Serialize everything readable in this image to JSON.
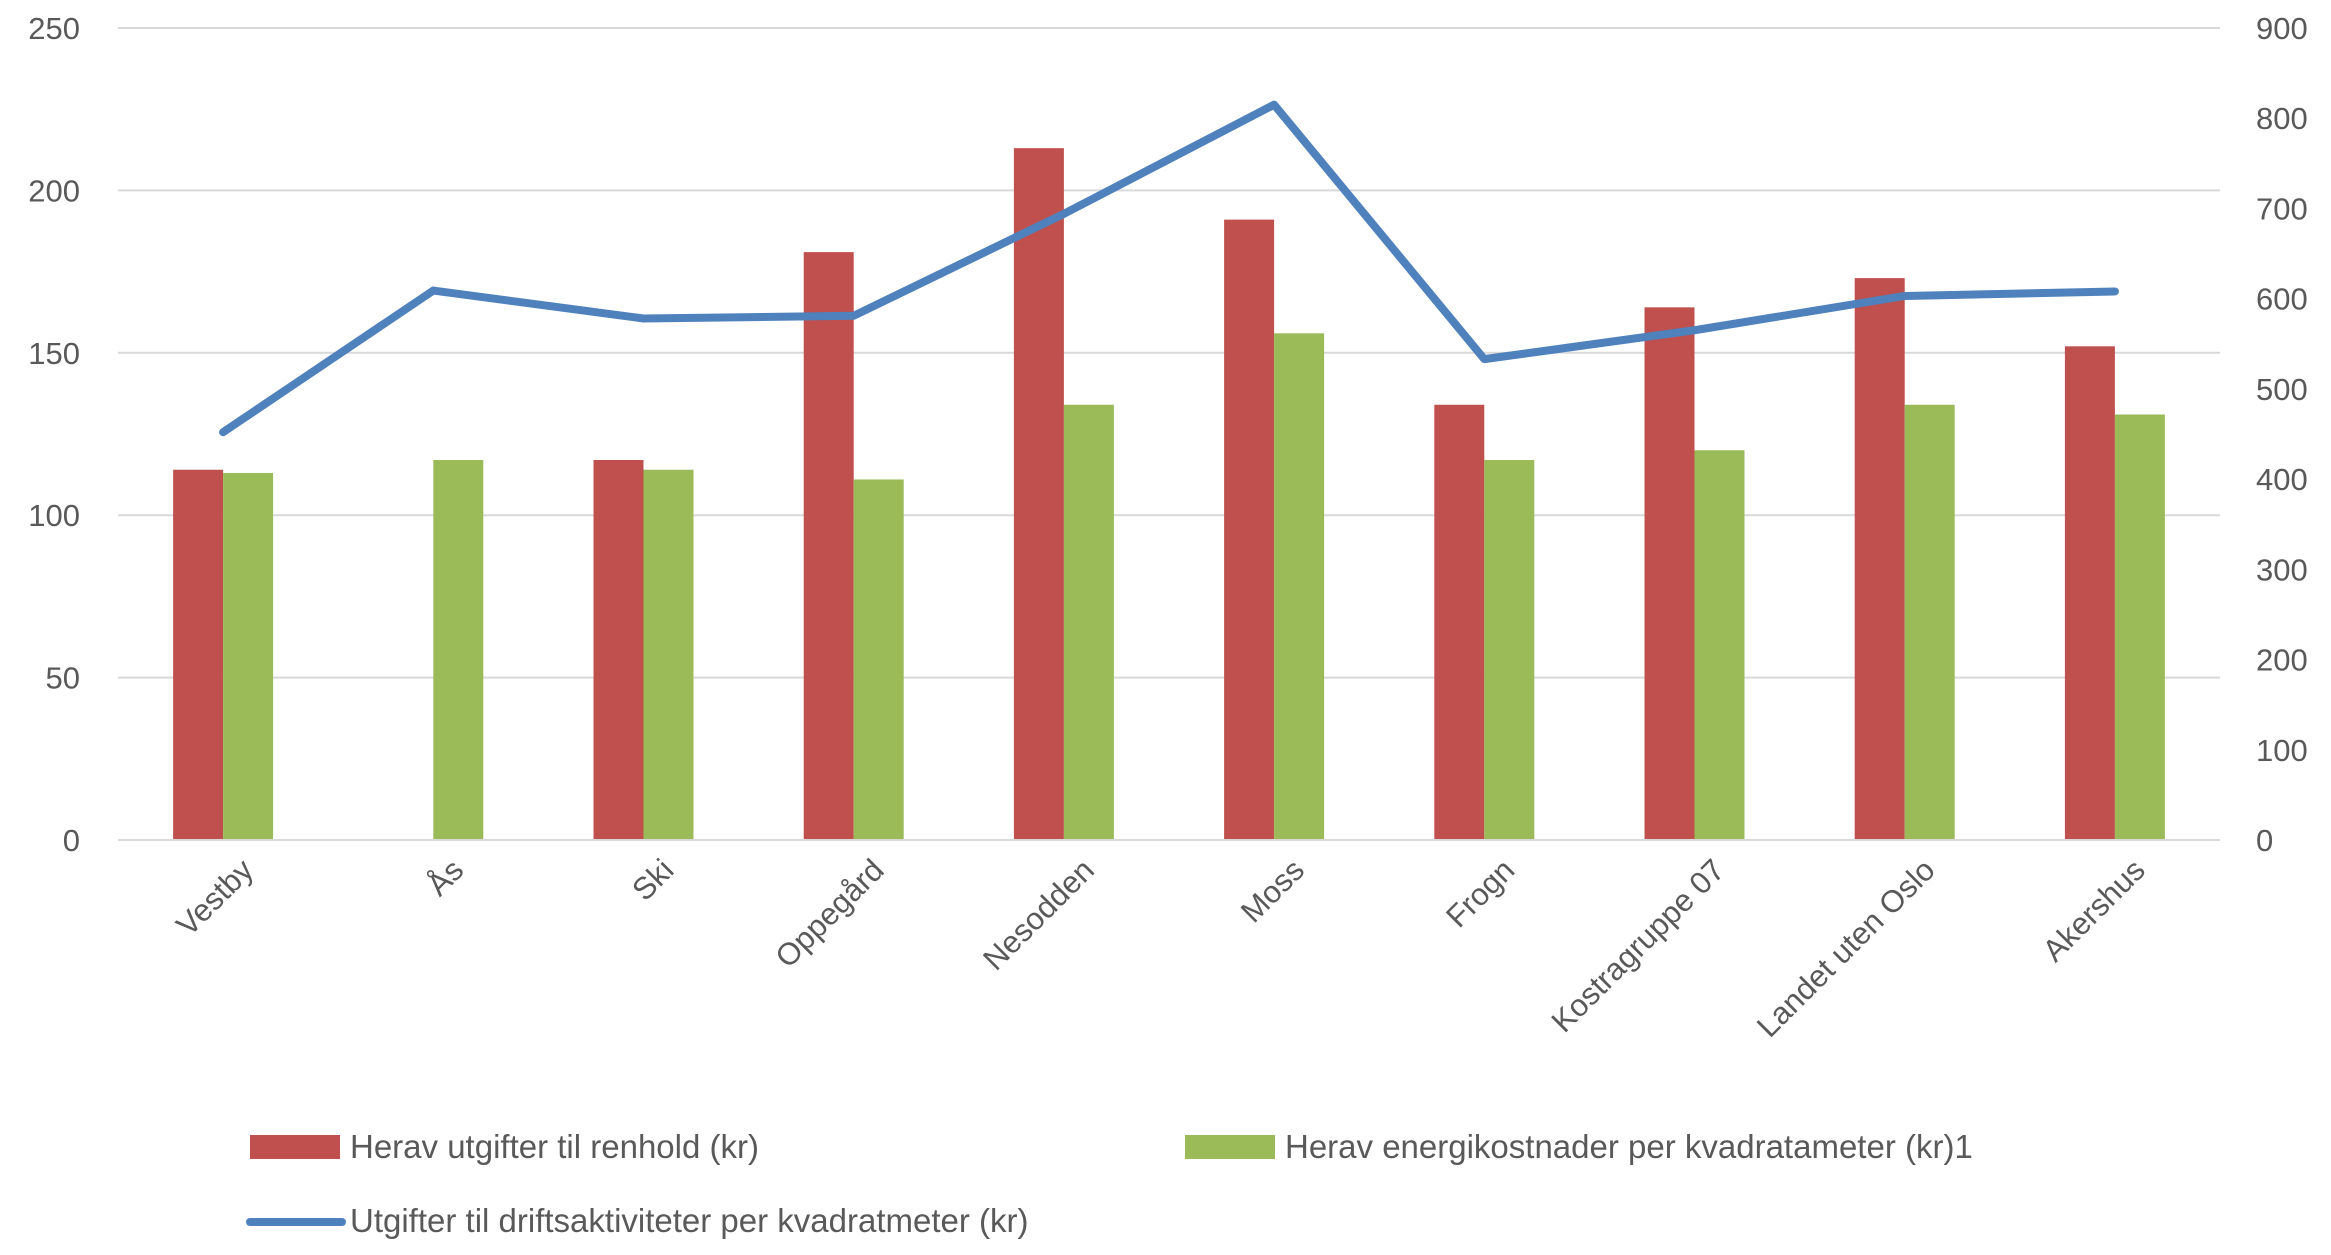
{
  "chart_data": {
    "type": "bar",
    "categories": [
      "Vestby",
      "Ås",
      "Ski",
      "Oppegård",
      "Nesodden",
      "Moss",
      "Frogn",
      "Kostragruppe 07",
      "Landet uten Oslo",
      "Akershus"
    ],
    "series": [
      {
        "name": "Herav utgifter til renhold (kr)",
        "type": "bar",
        "axis": "left",
        "color": "#c0504d",
        "values": [
          114,
          null,
          117,
          181,
          213,
          191,
          134,
          164,
          173,
          152
        ]
      },
      {
        "name": "Herav energikostnader per kvadratameter (kr)1",
        "type": "bar",
        "axis": "left",
        "color": "#9bbb59",
        "values": [
          113,
          117,
          114,
          111,
          134,
          156,
          117,
          120,
          134,
          131
        ]
      },
      {
        "name": "Utgifter til driftsaktiviteter per kvadratmeter (kr)",
        "type": "line",
        "axis": "right",
        "color": "#4f81bd",
        "values": [
          452,
          609,
          578,
          581,
          694,
          815,
          533,
          565,
          603,
          608
        ]
      }
    ],
    "y_left": {
      "range": [
        0,
        250
      ],
      "ticks": [
        "0",
        "50",
        "100",
        "150",
        "200",
        "250"
      ]
    },
    "y_right": {
      "range": [
        0,
        900
      ],
      "ticks": [
        "0",
        "100",
        "200",
        "300",
        "400",
        "500",
        "600",
        "700",
        "800",
        "900"
      ]
    },
    "grid": true,
    "legend_position": "bottom"
  }
}
